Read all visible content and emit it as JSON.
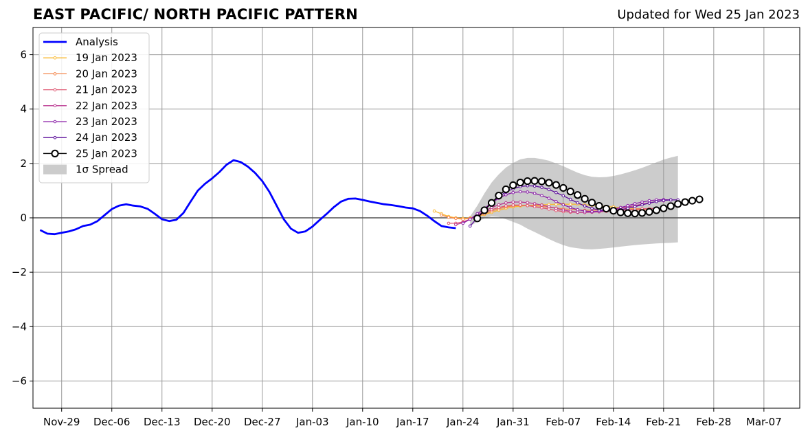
{
  "header": {
    "title": "EAST PACIFIC/ NORTH PACIFIC PATTERN",
    "updated": "Updated for Wed 25 Jan 2023"
  },
  "chart_data": {
    "type": "line",
    "title": "EAST PACIFIC/ NORTH PACIFIC PATTERN",
    "subtitle": "Updated for Wed 25 Jan 2023",
    "xlabel": "",
    "ylabel": "",
    "xlim": [
      "2022-11-25",
      "2023-03-12"
    ],
    "ylim": [
      -7,
      7
    ],
    "x_ticks": [
      "Nov-29",
      "Dec-06",
      "Dec-13",
      "Dec-20",
      "Dec-27",
      "Jan-03",
      "Jan-10",
      "Jan-17",
      "Jan-24",
      "Jan-31",
      "Feb-07",
      "Feb-14",
      "Feb-21",
      "Feb-28",
      "Mar-07"
    ],
    "x_tick_dates": [
      "2022-11-29",
      "2022-12-06",
      "2022-12-13",
      "2022-12-20",
      "2022-12-27",
      "2023-01-03",
      "2023-01-10",
      "2023-01-17",
      "2023-01-24",
      "2023-01-31",
      "2023-02-07",
      "2023-02-14",
      "2023-02-21",
      "2023-02-28",
      "2023-03-07"
    ],
    "y_ticks": [
      "−6",
      "−4",
      "−2",
      "0",
      "2",
      "4",
      "6"
    ],
    "y_tick_values": [
      -6,
      -4,
      -2,
      0,
      2,
      4,
      6
    ],
    "grid": true,
    "legend_position": "top-left",
    "colors": {
      "analysis": "#0000ff",
      "spread": "#cccccc",
      "grid": "#999999",
      "zero_line": "#555555",
      "f19": "#f9b932",
      "f20": "#f4854a",
      "f21": "#de5570",
      "f22": "#b9358f",
      "f23": "#8a1fa8",
      "f24": "#5c0f9b",
      "f25": "#000000"
    },
    "analysis": {
      "name": "Analysis",
      "start": "2022-11-26",
      "values": [
        -0.45,
        -0.58,
        -0.6,
        -0.55,
        -0.5,
        -0.42,
        -0.3,
        -0.25,
        -0.12,
        0.1,
        0.32,
        0.45,
        0.5,
        0.45,
        0.42,
        0.33,
        0.15,
        -0.05,
        -0.12,
        -0.07,
        0.18,
        0.6,
        1.0,
        1.25,
        1.45,
        1.68,
        1.95,
        2.12,
        2.05,
        1.88,
        1.65,
        1.35,
        0.95,
        0.45,
        -0.05,
        -0.4,
        -0.55,
        -0.5,
        -0.32,
        -0.08,
        0.15,
        0.4,
        0.6,
        0.7,
        0.71,
        0.66,
        0.6,
        0.55,
        0.5,
        0.47,
        0.43,
        0.38,
        0.35,
        0.25,
        0.08,
        -0.12,
        -0.3,
        -0.35,
        -0.38
      ]
    },
    "spread": {
      "name": "1σ Spread",
      "start": "2023-01-25",
      "upper": [
        0.05,
        0.45,
        0.9,
        1.3,
        1.6,
        1.85,
        2.02,
        2.15,
        2.2,
        2.2,
        2.16,
        2.1,
        2.0,
        1.9,
        1.78,
        1.66,
        1.57,
        1.51,
        1.49,
        1.5,
        1.54,
        1.6,
        1.67,
        1.75,
        1.84,
        1.94,
        2.04,
        2.14,
        2.22,
        2.28
      ],
      "lower": [
        -0.3,
        -0.15,
        -0.02,
        0.05,
        0.03,
        -0.05,
        -0.15,
        -0.25,
        -0.4,
        -0.52,
        -0.65,
        -0.78,
        -0.9,
        -1.0,
        -1.08,
        -1.12,
        -1.15,
        -1.16,
        -1.14,
        -1.12,
        -1.09,
        -1.06,
        -1.03,
        -1.0,
        -0.98,
        -0.96,
        -0.94,
        -0.93,
        -0.92,
        -0.9
      ]
    },
    "forecasts": [
      {
        "name": "19 Jan 2023",
        "start": "2023-01-20",
        "values": [
          0.25,
          0.15,
          0.05,
          0.0,
          -0.02,
          0.0,
          0.05,
          0.12,
          0.2,
          0.28,
          0.35,
          0.4,
          0.43,
          0.45,
          0.47,
          0.48,
          0.49,
          0.5,
          0.5,
          0.5,
          0.5,
          0.48,
          0.46,
          0.44,
          0.42,
          0.4,
          0.38,
          0.36,
          0.34,
          0.33
        ]
      },
      {
        "name": "20 Jan 2023",
        "start": "2023-01-21",
        "values": [
          0.1,
          0.02,
          -0.02,
          -0.05,
          -0.02,
          0.05,
          0.15,
          0.25,
          0.33,
          0.4,
          0.44,
          0.46,
          0.46,
          0.45,
          0.42,
          0.39,
          0.36,
          0.33,
          0.31,
          0.29,
          0.28,
          0.28,
          0.28,
          0.28,
          0.29,
          0.29,
          0.3,
          0.3,
          0.3,
          0.3
        ]
      },
      {
        "name": "21 Jan 2023",
        "start": "2023-01-22",
        "values": [
          -0.2,
          -0.2,
          -0.15,
          -0.05,
          0.08,
          0.2,
          0.3,
          0.38,
          0.44,
          0.47,
          0.47,
          0.45,
          0.41,
          0.37,
          0.32,
          0.27,
          0.23,
          0.21,
          0.2,
          0.2,
          0.21,
          0.22,
          0.24,
          0.26,
          0.28,
          0.3,
          0.32,
          0.33,
          0.34,
          0.35
        ]
      },
      {
        "name": "22 Jan 2023",
        "start": "2023-01-23",
        "values": [
          -0.25,
          -0.18,
          -0.05,
          0.1,
          0.25,
          0.38,
          0.48,
          0.55,
          0.58,
          0.58,
          0.56,
          0.52,
          0.47,
          0.41,
          0.35,
          0.29,
          0.24,
          0.21,
          0.2,
          0.21,
          0.23,
          0.26,
          0.3,
          0.35,
          0.4,
          0.45,
          0.5,
          0.55,
          0.6,
          0.63
        ]
      },
      {
        "name": "23 Jan 2023",
        "start": "2023-01-24",
        "values": [
          -0.2,
          -0.05,
          0.15,
          0.35,
          0.55,
          0.72,
          0.85,
          0.93,
          0.96,
          0.95,
          0.9,
          0.82,
          0.72,
          0.6,
          0.48,
          0.38,
          0.3,
          0.25,
          0.23,
          0.24,
          0.27,
          0.32,
          0.38,
          0.45,
          0.52,
          0.58,
          0.63,
          0.66,
          0.67,
          0.66
        ]
      },
      {
        "name": "24 Jan 2023",
        "start": "2023-01-25",
        "values": [
          -0.3,
          0.0,
          0.3,
          0.55,
          0.78,
          0.95,
          1.07,
          1.15,
          1.18,
          1.17,
          1.12,
          1.04,
          0.93,
          0.81,
          0.68,
          0.55,
          0.44,
          0.35,
          0.29,
          0.26,
          0.27,
          0.3,
          0.35,
          0.41,
          0.48,
          0.54,
          0.6,
          0.64,
          0.66,
          0.66
        ]
      },
      {
        "name": "25 Jan 2023",
        "start": "2023-01-26",
        "values": [
          -0.02,
          0.28,
          0.55,
          0.82,
          1.05,
          1.2,
          1.3,
          1.35,
          1.36,
          1.34,
          1.29,
          1.21,
          1.1,
          0.97,
          0.84,
          0.7,
          0.56,
          0.44,
          0.34,
          0.26,
          0.2,
          0.17,
          0.16,
          0.18,
          0.22,
          0.28,
          0.35,
          0.43,
          0.51,
          0.58,
          0.63,
          0.68
        ]
      }
    ],
    "legend": [
      "Analysis",
      "19 Jan 2023",
      "20 Jan 2023",
      "21 Jan 2023",
      "22 Jan 2023",
      "23 Jan 2023",
      "24 Jan 2023",
      "25 Jan 2023",
      "1σ Spread"
    ]
  }
}
